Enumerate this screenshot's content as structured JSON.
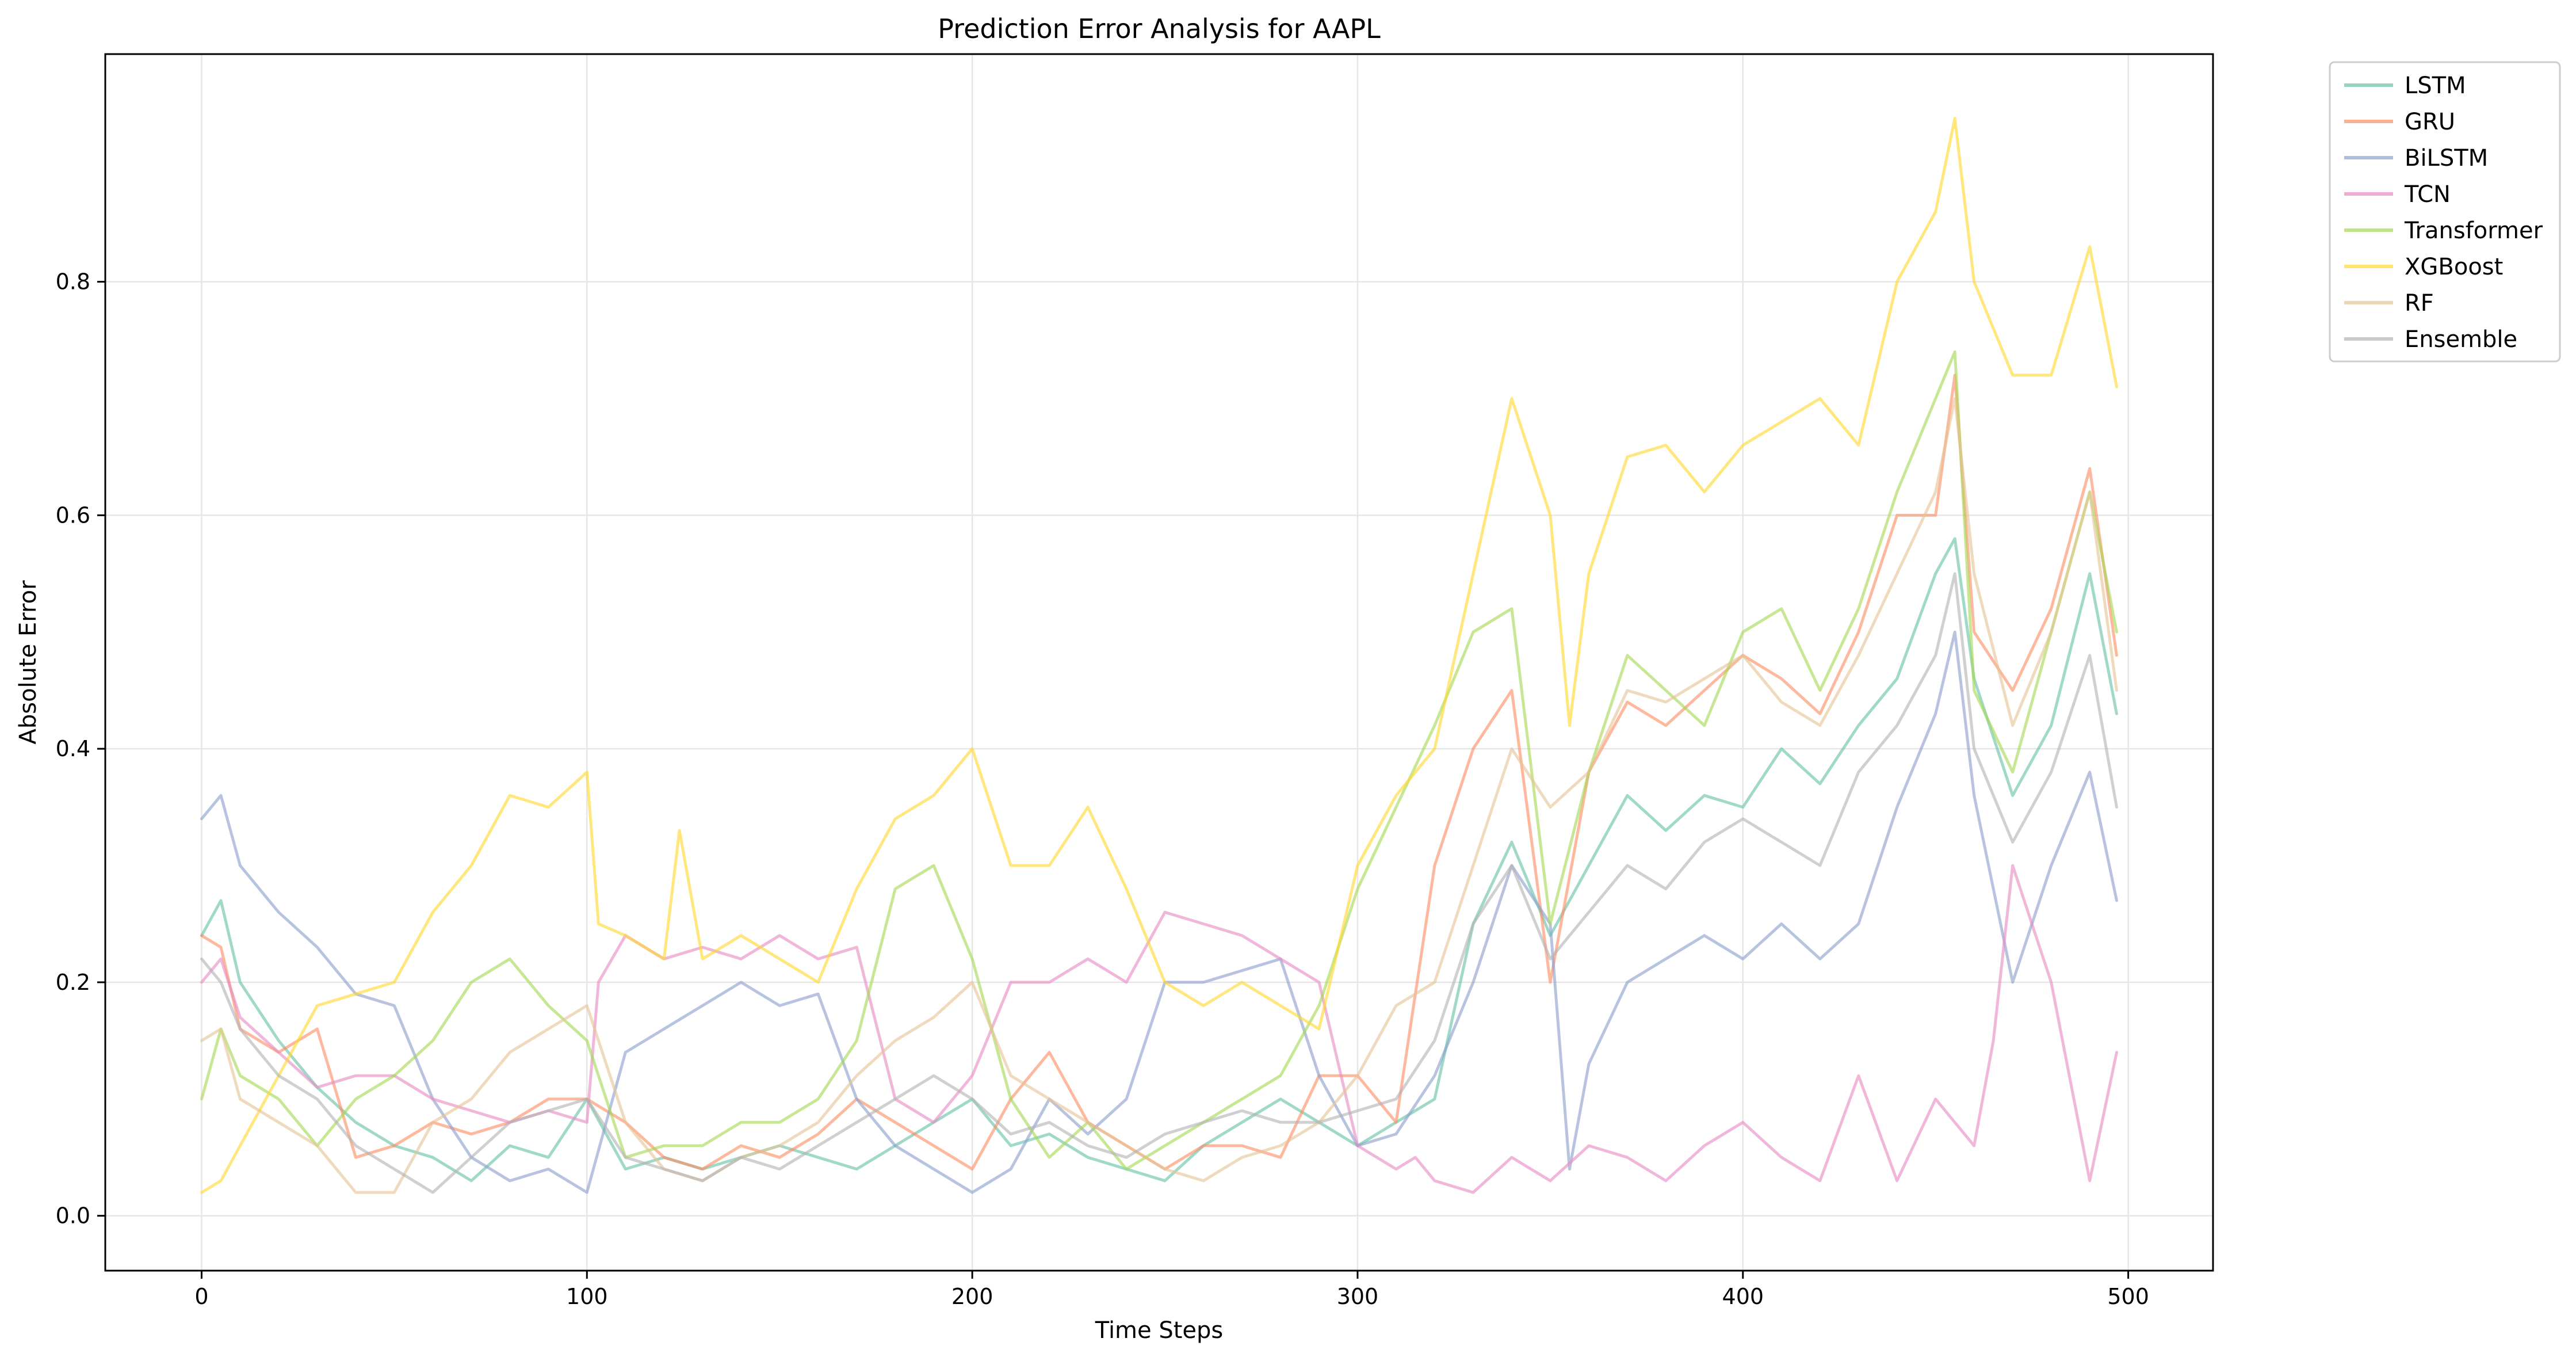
{
  "chart_data": {
    "type": "line",
    "title": "Prediction Error Analysis for AAPL",
    "xlabel": "Time Steps",
    "ylabel": "Absolute Error",
    "xlim": [
      -25,
      522
    ],
    "ylim": [
      -0.047,
      0.995
    ],
    "xticks": [
      0,
      100,
      200,
      300,
      400,
      500
    ],
    "xtick_labels": [
      "0",
      "100",
      "200",
      "300",
      "400",
      "500"
    ],
    "yticks": [
      0.0,
      0.2,
      0.4,
      0.6,
      0.8
    ],
    "ytick_labels": [
      "0.0",
      "0.2",
      "0.4",
      "0.6",
      "0.8"
    ],
    "grid": true,
    "legend_position": "outside-top-right",
    "series": [
      {
        "name": "LSTM",
        "color": "#66c2a5",
        "x": [
          0,
          5,
          10,
          20,
          30,
          40,
          50,
          60,
          70,
          80,
          90,
          100,
          110,
          120,
          130,
          140,
          150,
          160,
          170,
          180,
          190,
          200,
          210,
          220,
          230,
          240,
          250,
          260,
          270,
          280,
          290,
          300,
          310,
          320,
          330,
          340,
          350,
          360,
          370,
          380,
          390,
          400,
          410,
          420,
          430,
          440,
          450,
          455,
          460,
          470,
          480,
          490,
          497
        ],
        "y": [
          0.24,
          0.27,
          0.2,
          0.15,
          0.11,
          0.08,
          0.06,
          0.05,
          0.03,
          0.06,
          0.05,
          0.1,
          0.04,
          0.05,
          0.04,
          0.05,
          0.06,
          0.05,
          0.04,
          0.06,
          0.08,
          0.1,
          0.06,
          0.07,
          0.05,
          0.04,
          0.03,
          0.06,
          0.08,
          0.1,
          0.08,
          0.06,
          0.08,
          0.1,
          0.25,
          0.32,
          0.24,
          0.3,
          0.36,
          0.33,
          0.36,
          0.35,
          0.4,
          0.37,
          0.42,
          0.46,
          0.55,
          0.58,
          0.46,
          0.36,
          0.42,
          0.55,
          0.43
        ]
      },
      {
        "name": "GRU",
        "color": "#fc8d62",
        "x": [
          0,
          5,
          10,
          20,
          30,
          40,
          50,
          60,
          70,
          80,
          90,
          100,
          110,
          120,
          130,
          140,
          150,
          160,
          170,
          180,
          190,
          200,
          210,
          220,
          230,
          240,
          250,
          260,
          270,
          280,
          290,
          300,
          310,
          320,
          330,
          340,
          350,
          360,
          370,
          380,
          390,
          400,
          410,
          420,
          430,
          440,
          450,
          455,
          460,
          470,
          480,
          490,
          497
        ],
        "y": [
          0.24,
          0.23,
          0.16,
          0.14,
          0.16,
          0.05,
          0.06,
          0.08,
          0.07,
          0.08,
          0.1,
          0.1,
          0.08,
          0.05,
          0.04,
          0.06,
          0.05,
          0.07,
          0.1,
          0.08,
          0.06,
          0.04,
          0.1,
          0.14,
          0.08,
          0.06,
          0.04,
          0.06,
          0.06,
          0.05,
          0.12,
          0.12,
          0.08,
          0.3,
          0.4,
          0.45,
          0.2,
          0.38,
          0.44,
          0.42,
          0.45,
          0.48,
          0.46,
          0.43,
          0.5,
          0.6,
          0.6,
          0.72,
          0.5,
          0.45,
          0.52,
          0.64,
          0.48
        ]
      },
      {
        "name": "BiLSTM",
        "color": "#8da0cb",
        "x": [
          0,
          5,
          10,
          20,
          30,
          40,
          50,
          60,
          70,
          80,
          90,
          100,
          110,
          120,
          130,
          140,
          150,
          160,
          170,
          180,
          190,
          200,
          210,
          220,
          230,
          240,
          250,
          260,
          270,
          280,
          290,
          300,
          310,
          320,
          330,
          340,
          350,
          355,
          360,
          370,
          380,
          390,
          400,
          410,
          420,
          430,
          440,
          450,
          455,
          460,
          470,
          480,
          490,
          497
        ],
        "y": [
          0.34,
          0.36,
          0.3,
          0.26,
          0.23,
          0.19,
          0.18,
          0.1,
          0.05,
          0.03,
          0.04,
          0.02,
          0.14,
          0.16,
          0.18,
          0.2,
          0.18,
          0.19,
          0.1,
          0.06,
          0.04,
          0.02,
          0.04,
          0.1,
          0.07,
          0.1,
          0.2,
          0.2,
          0.21,
          0.22,
          0.12,
          0.06,
          0.07,
          0.12,
          0.2,
          0.3,
          0.25,
          0.04,
          0.13,
          0.2,
          0.22,
          0.24,
          0.22,
          0.25,
          0.22,
          0.25,
          0.35,
          0.43,
          0.5,
          0.36,
          0.2,
          0.3,
          0.38,
          0.27
        ]
      },
      {
        "name": "TCN",
        "color": "#e78ac3",
        "x": [
          0,
          5,
          10,
          20,
          30,
          40,
          50,
          60,
          70,
          80,
          90,
          100,
          103,
          110,
          120,
          130,
          140,
          150,
          160,
          170,
          180,
          190,
          200,
          210,
          220,
          230,
          240,
          250,
          260,
          270,
          280,
          290,
          300,
          310,
          315,
          320,
          330,
          340,
          350,
          360,
          370,
          380,
          390,
          400,
          410,
          420,
          430,
          440,
          450,
          460,
          465,
          470,
          480,
          490,
          497
        ],
        "y": [
          0.2,
          0.22,
          0.17,
          0.14,
          0.11,
          0.12,
          0.12,
          0.1,
          0.09,
          0.08,
          0.09,
          0.08,
          0.2,
          0.24,
          0.22,
          0.23,
          0.22,
          0.24,
          0.22,
          0.23,
          0.1,
          0.08,
          0.12,
          0.2,
          0.2,
          0.22,
          0.2,
          0.26,
          0.25,
          0.24,
          0.22,
          0.2,
          0.06,
          0.04,
          0.05,
          0.03,
          0.02,
          0.05,
          0.03,
          0.06,
          0.05,
          0.03,
          0.06,
          0.08,
          0.05,
          0.03,
          0.12,
          0.03,
          0.1,
          0.06,
          0.15,
          0.3,
          0.2,
          0.03,
          0.14
        ]
      },
      {
        "name": "Transformer",
        "color": "#a6d854",
        "x": [
          0,
          5,
          10,
          20,
          30,
          40,
          50,
          60,
          70,
          80,
          90,
          100,
          110,
          120,
          130,
          140,
          150,
          160,
          170,
          180,
          190,
          200,
          210,
          220,
          230,
          240,
          250,
          260,
          270,
          280,
          290,
          300,
          310,
          320,
          330,
          340,
          350,
          360,
          370,
          380,
          390,
          400,
          410,
          420,
          430,
          440,
          450,
          455,
          460,
          470,
          480,
          490,
          497
        ],
        "y": [
          0.1,
          0.16,
          0.12,
          0.1,
          0.06,
          0.1,
          0.12,
          0.15,
          0.2,
          0.22,
          0.18,
          0.15,
          0.05,
          0.06,
          0.06,
          0.08,
          0.08,
          0.1,
          0.15,
          0.28,
          0.3,
          0.22,
          0.1,
          0.05,
          0.08,
          0.04,
          0.06,
          0.08,
          0.1,
          0.12,
          0.18,
          0.28,
          0.35,
          0.42,
          0.5,
          0.52,
          0.25,
          0.38,
          0.48,
          0.45,
          0.42,
          0.5,
          0.52,
          0.45,
          0.52,
          0.62,
          0.7,
          0.74,
          0.45,
          0.38,
          0.5,
          0.62,
          0.5
        ]
      },
      {
        "name": "XGBoost",
        "color": "#ffd92f",
        "x": [
          0,
          5,
          10,
          20,
          30,
          40,
          50,
          60,
          70,
          80,
          90,
          100,
          103,
          110,
          120,
          124,
          130,
          140,
          150,
          160,
          170,
          180,
          190,
          200,
          210,
          220,
          230,
          240,
          250,
          260,
          270,
          280,
          290,
          300,
          310,
          320,
          330,
          340,
          350,
          355,
          360,
          370,
          380,
          390,
          400,
          410,
          420,
          430,
          440,
          450,
          455,
          460,
          470,
          480,
          490,
          497
        ],
        "y": [
          0.02,
          0.03,
          0.06,
          0.12,
          0.18,
          0.19,
          0.2,
          0.26,
          0.3,
          0.36,
          0.35,
          0.38,
          0.25,
          0.24,
          0.22,
          0.33,
          0.22,
          0.24,
          0.22,
          0.2,
          0.28,
          0.34,
          0.36,
          0.4,
          0.3,
          0.3,
          0.35,
          0.28,
          0.2,
          0.18,
          0.2,
          0.18,
          0.16,
          0.3,
          0.36,
          0.4,
          0.55,
          0.7,
          0.6,
          0.42,
          0.55,
          0.65,
          0.66,
          0.62,
          0.66,
          0.68,
          0.7,
          0.66,
          0.8,
          0.86,
          0.94,
          0.8,
          0.72,
          0.72,
          0.83,
          0.71
        ]
      },
      {
        "name": "RF",
        "color": "#e5c494",
        "x": [
          0,
          5,
          10,
          20,
          30,
          40,
          50,
          60,
          70,
          80,
          90,
          100,
          110,
          120,
          130,
          140,
          150,
          160,
          170,
          180,
          190,
          200,
          210,
          220,
          230,
          240,
          250,
          260,
          270,
          280,
          290,
          300,
          310,
          320,
          330,
          340,
          350,
          360,
          370,
          380,
          390,
          400,
          410,
          420,
          430,
          440,
          450,
          455,
          460,
          470,
          480,
          490,
          497
        ],
        "y": [
          0.15,
          0.16,
          0.1,
          0.08,
          0.06,
          0.02,
          0.02,
          0.08,
          0.1,
          0.14,
          0.16,
          0.18,
          0.08,
          0.04,
          0.03,
          0.05,
          0.06,
          0.08,
          0.12,
          0.15,
          0.17,
          0.2,
          0.12,
          0.1,
          0.08,
          0.06,
          0.04,
          0.03,
          0.05,
          0.06,
          0.08,
          0.12,
          0.18,
          0.2,
          0.3,
          0.4,
          0.35,
          0.38,
          0.45,
          0.44,
          0.46,
          0.48,
          0.44,
          0.42,
          0.48,
          0.55,
          0.62,
          0.7,
          0.55,
          0.42,
          0.5,
          0.62,
          0.45
        ]
      },
      {
        "name": "Ensemble",
        "color": "#b3b3b3",
        "x": [
          0,
          5,
          10,
          20,
          30,
          40,
          50,
          60,
          70,
          80,
          90,
          100,
          110,
          120,
          130,
          140,
          150,
          160,
          170,
          180,
          190,
          200,
          210,
          220,
          230,
          240,
          250,
          260,
          270,
          280,
          290,
          300,
          310,
          320,
          330,
          340,
          350,
          360,
          370,
          380,
          390,
          400,
          410,
          420,
          430,
          440,
          450,
          455,
          460,
          470,
          480,
          490,
          497
        ],
        "y": [
          0.22,
          0.2,
          0.16,
          0.12,
          0.1,
          0.06,
          0.04,
          0.02,
          0.05,
          0.08,
          0.09,
          0.1,
          0.05,
          0.04,
          0.03,
          0.05,
          0.04,
          0.06,
          0.08,
          0.1,
          0.12,
          0.1,
          0.07,
          0.08,
          0.06,
          0.05,
          0.07,
          0.08,
          0.09,
          0.08,
          0.08,
          0.09,
          0.1,
          0.15,
          0.25,
          0.3,
          0.22,
          0.26,
          0.3,
          0.28,
          0.32,
          0.34,
          0.32,
          0.3,
          0.38,
          0.42,
          0.48,
          0.55,
          0.4,
          0.32,
          0.38,
          0.48,
          0.35
        ]
      }
    ]
  }
}
